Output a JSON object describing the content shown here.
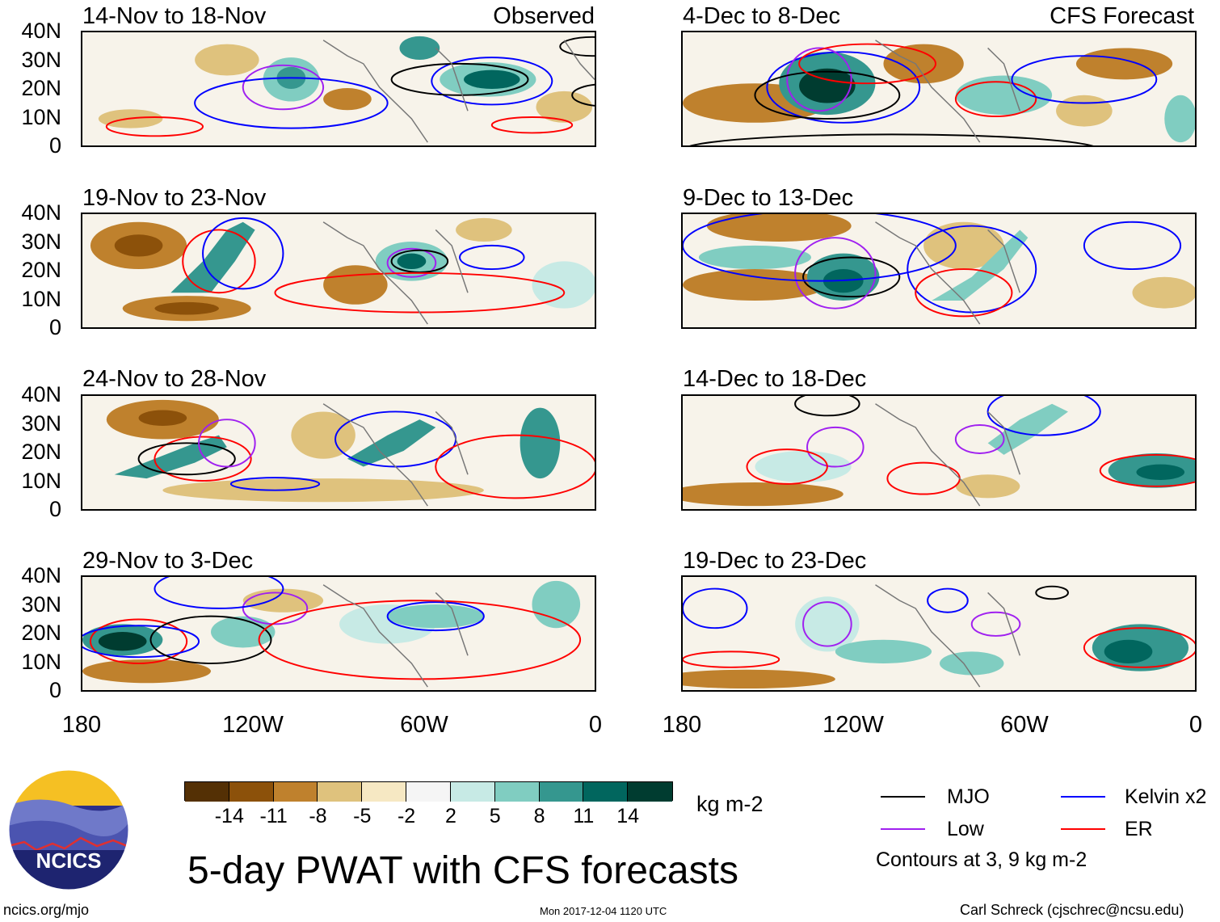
{
  "header": {
    "left_tag": "Observed",
    "right_tag": "CFS Forecast"
  },
  "panels_left": [
    {
      "title": "14-Nov to 18-Nov"
    },
    {
      "title": "19-Nov to 23-Nov"
    },
    {
      "title": "24-Nov to 28-Nov"
    },
    {
      "title": "29-Nov to 3-Dec"
    }
  ],
  "panels_right": [
    {
      "title": "4-Dec to 8-Dec"
    },
    {
      "title": "9-Dec to 13-Dec"
    },
    {
      "title": "14-Dec to 18-Dec"
    },
    {
      "title": "19-Dec to 23-Dec"
    }
  ],
  "axes": {
    "lat_labels": [
      "40N",
      "30N",
      "20N",
      "10N",
      "0"
    ],
    "lon_labels": [
      "180",
      "120W",
      "60W",
      "0"
    ]
  },
  "colorbar": {
    "unit": "kg m-2",
    "labels": [
      "-14",
      "-11",
      "-8",
      "-5",
      "-2",
      "2",
      "5",
      "8",
      "11",
      "14"
    ],
    "colors": [
      "#543005",
      "#8c510a",
      "#bf812d",
      "#dfc27d",
      "#f6e8c3",
      "#f5f5f5",
      "#c7eae5",
      "#80cdc1",
      "#35978f",
      "#01665e",
      "#003c30"
    ]
  },
  "legend": {
    "items": [
      {
        "label": "MJO",
        "color": "#000000"
      },
      {
        "label": "Kelvin x2",
        "color": "#0000ff"
      },
      {
        "label": "Low",
        "color": "#a020f0"
      },
      {
        "label": "ER",
        "color": "#ff0000"
      }
    ],
    "note": "Contours at 3, 9 kg m-2"
  },
  "footer": {
    "title": "5-day PWAT with CFS forecasts",
    "logo_text": "NCICS",
    "url": "ncics.org/mjo",
    "timestamp": "Mon 2017-12-04 1120 UTC",
    "credit": "Carl Schreck (cjschrec@ncsu.edu)"
  }
}
